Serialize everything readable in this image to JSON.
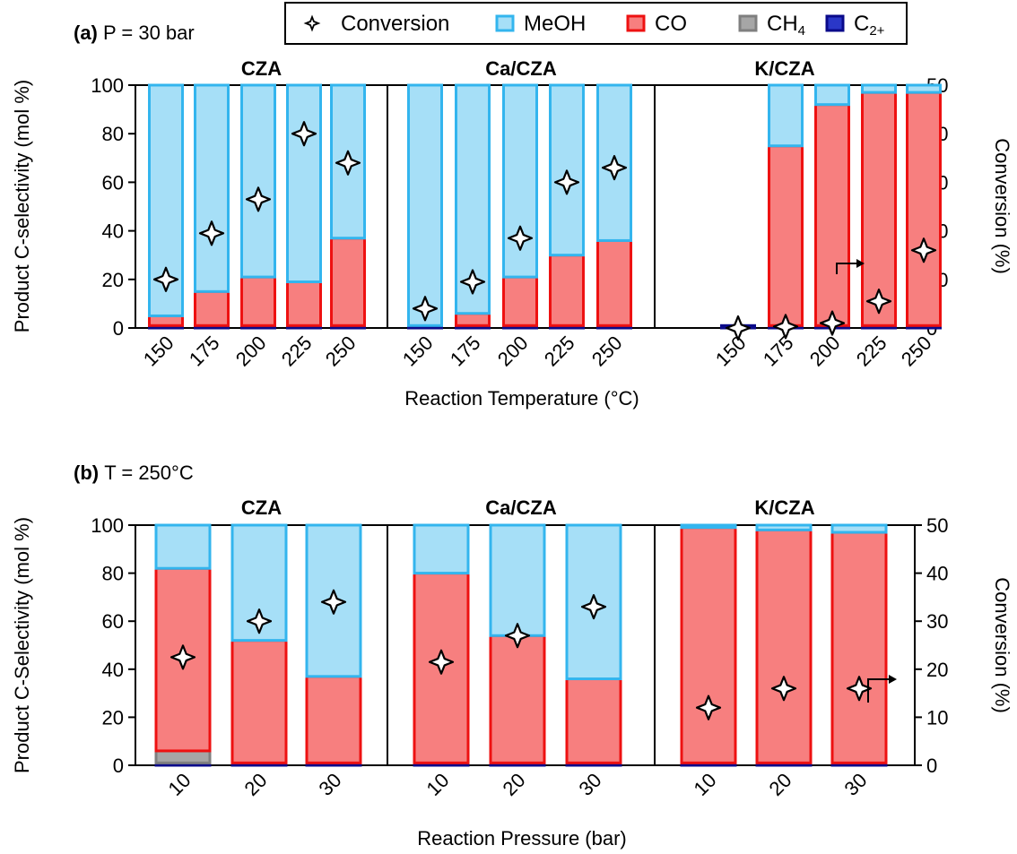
{
  "legend": {
    "items": [
      {
        "key": "conversion",
        "label": "Conversion",
        "marker": "star-icon"
      },
      {
        "key": "meoh",
        "label": "MeOH",
        "color": "#a6dff7",
        "edge": "#33b5ee"
      },
      {
        "key": "co",
        "label": "CO",
        "color": "#f77f7f",
        "edge": "#ee1111"
      },
      {
        "key": "ch4",
        "label": "CH",
        "sub": "4",
        "color": "#a6a6a6",
        "edge": "#7f7f7f"
      },
      {
        "key": "c2",
        "label": "C",
        "sub": "2+",
        "color": "#2a37c8",
        "edge": "#0a0a8a"
      }
    ]
  },
  "chart_data": [
    {
      "type": "bar",
      "panel_label": "(a)",
      "panel_title": "P = 30 bar",
      "xlabel": "Reaction Temperature (°C)",
      "ylabel": "Product C-selectivity (mol %)",
      "ylabel_right": "Conversion (%)",
      "ylim": [
        0,
        100
      ],
      "yticks": [
        0,
        20,
        40,
        60,
        80,
        100
      ],
      "ylim_right": [
        0,
        50
      ],
      "yticks_right": [
        0,
        10,
        20,
        30,
        40,
        50
      ],
      "arrow_near": "K/CZA 225",
      "groups": [
        {
          "name": "CZA",
          "categories": [
            "150",
            "175",
            "200",
            "225",
            "250"
          ],
          "series": [
            {
              "name": "C2+",
              "values": [
                1,
                1,
                1,
                1,
                1
              ]
            },
            {
              "name": "CH4",
              "values": [
                0,
                0,
                0,
                0,
                0
              ]
            },
            {
              "name": "CO",
              "values": [
                4,
                14,
                20,
                18,
                36
              ]
            },
            {
              "name": "MeOH",
              "values": [
                95,
                85,
                79,
                81,
                63
              ]
            }
          ],
          "conversion": [
            10,
            19.5,
            26.5,
            40,
            34
          ]
        },
        {
          "name": "Ca/CZA",
          "categories": [
            "150",
            "175",
            "200",
            "225",
            "250"
          ],
          "series": [
            {
              "name": "C2+",
              "values": [
                1,
                1,
                1,
                1,
                1
              ]
            },
            {
              "name": "CH4",
              "values": [
                0,
                0,
                0,
                0,
                0
              ]
            },
            {
              "name": "CO",
              "values": [
                0,
                5,
                20,
                29,
                35
              ]
            },
            {
              "name": "MeOH",
              "values": [
                99,
                94,
                79,
                70,
                64
              ]
            }
          ],
          "conversion": [
            4,
            9.5,
            18.5,
            30,
            33
          ]
        },
        {
          "name": "K/CZA",
          "categories": [
            "150",
            "175",
            "200",
            "225",
            "250"
          ],
          "series": [
            {
              "name": "C2+",
              "values": [
                1,
                1,
                1,
                1,
                1
              ]
            },
            {
              "name": "CH4",
              "values": [
                0,
                0,
                0,
                0,
                0
              ]
            },
            {
              "name": "CO",
              "values": [
                0,
                74,
                91,
                96,
                96
              ]
            },
            {
              "name": "MeOH",
              "values": [
                0,
                25,
                8,
                3,
                3
              ]
            }
          ],
          "conversion": [
            0,
            0.3,
            1,
            5.5,
            16
          ]
        }
      ]
    },
    {
      "type": "bar",
      "panel_label": "(b)",
      "panel_title": "T = 250°C",
      "xlabel": "Reaction Pressure (bar)",
      "ylabel": "Product C-Selectivity (mol %)",
      "ylabel_right": "Conversion (%)",
      "ylim": [
        0,
        100
      ],
      "yticks": [
        0,
        20,
        40,
        60,
        80,
        100
      ],
      "ylim_right": [
        0,
        50
      ],
      "yticks_right": [
        0,
        10,
        20,
        30,
        40,
        50
      ],
      "arrow_near": "K/CZA 30",
      "groups": [
        {
          "name": "CZA",
          "categories": [
            "10",
            "20",
            "30"
          ],
          "series": [
            {
              "name": "C2+",
              "values": [
                1,
                1,
                1
              ]
            },
            {
              "name": "CH4",
              "values": [
                5,
                0,
                0
              ]
            },
            {
              "name": "CO",
              "values": [
                76,
                51,
                36
              ]
            },
            {
              "name": "MeOH",
              "values": [
                18,
                48,
                63
              ]
            }
          ],
          "conversion": [
            22.5,
            30,
            34
          ]
        },
        {
          "name": "Ca/CZA",
          "categories": [
            "10",
            "20",
            "30"
          ],
          "series": [
            {
              "name": "C2+",
              "values": [
                1,
                1,
                1
              ]
            },
            {
              "name": "CH4",
              "values": [
                0,
                0,
                0
              ]
            },
            {
              "name": "CO",
              "values": [
                79,
                53,
                35
              ]
            },
            {
              "name": "MeOH",
              "values": [
                20,
                46,
                64
              ]
            }
          ],
          "conversion": [
            21.5,
            27,
            33
          ]
        },
        {
          "name": "K/CZA",
          "categories": [
            "10",
            "20",
            "30"
          ],
          "series": [
            {
              "name": "C2+",
              "values": [
                1,
                1,
                1
              ]
            },
            {
              "name": "CH4",
              "values": [
                0,
                0,
                0
              ]
            },
            {
              "name": "CO",
              "values": [
                98,
                97,
                96
              ]
            },
            {
              "name": "MeOH",
              "values": [
                1,
                2,
                3
              ]
            }
          ],
          "conversion": [
            12,
            16,
            16
          ]
        }
      ]
    }
  ]
}
